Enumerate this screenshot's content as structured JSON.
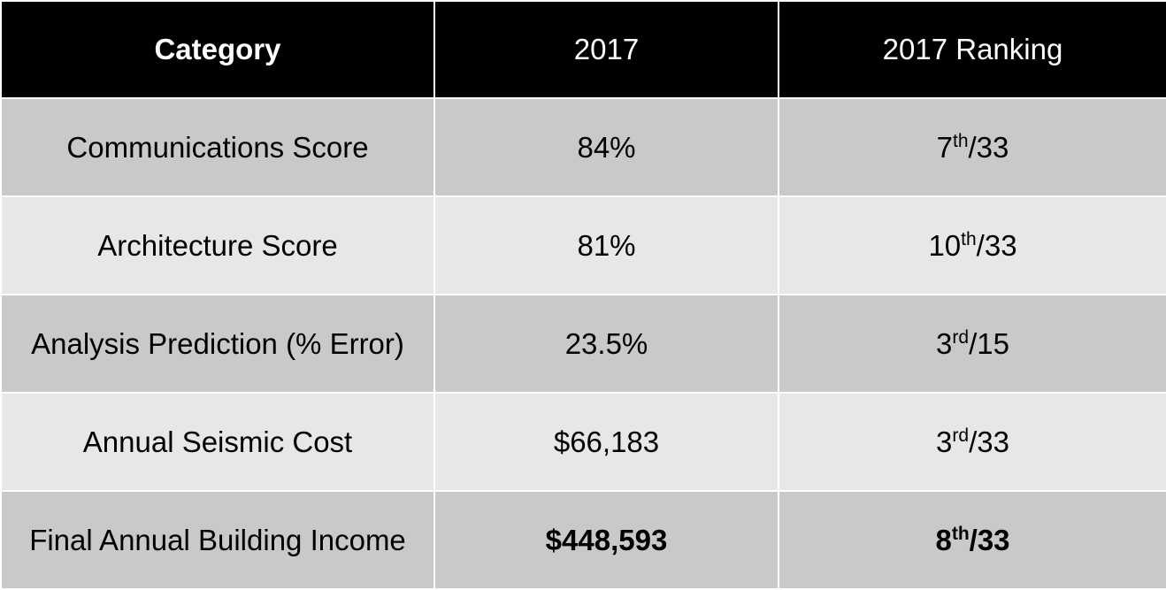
{
  "header": {
    "category": "Category",
    "year": "2017",
    "ranking": "2017 Ranking"
  },
  "rows": [
    {
      "category": "Communications Score",
      "value": "84%",
      "rank_num": "7",
      "rank_suffix": "th",
      "rank_total": "/33"
    },
    {
      "category": "Architecture Score",
      "value": "81%",
      "rank_num": "10",
      "rank_suffix": "th",
      "rank_total": "/33"
    },
    {
      "category": "Analysis Prediction (% Error)",
      "value": "23.5%",
      "rank_num": "3",
      "rank_suffix": "rd",
      "rank_total": "/15"
    },
    {
      "category": "Annual Seismic Cost",
      "value": "$66,183",
      "rank_num": "3",
      "rank_suffix": "rd",
      "rank_total": "/33"
    },
    {
      "category": "Final Annual Building Income",
      "value": "$448,593",
      "rank_num": "8",
      "rank_suffix": "th",
      "rank_total": "/33"
    }
  ],
  "colors": {
    "header_bg": "#000000",
    "header_text": "#ffffff",
    "row_dark": "#c9c9c9",
    "row_light": "#e7e7e7"
  }
}
